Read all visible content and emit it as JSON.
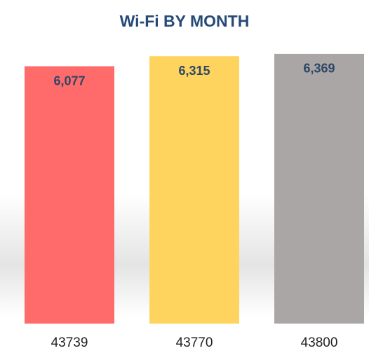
{
  "chart_data": {
    "type": "bar",
    "title": "Wi-Fi BY MONTH",
    "categories": [
      "43739",
      "43770",
      "43800"
    ],
    "values": [
      6077,
      6315,
      6369
    ],
    "value_labels": [
      "6,077",
      "6,315",
      "6,369"
    ],
    "colors": [
      "#ff6b6b",
      "#ffd45e",
      "#aaa6a6"
    ],
    "ylim": [
      0,
      6500
    ]
  }
}
